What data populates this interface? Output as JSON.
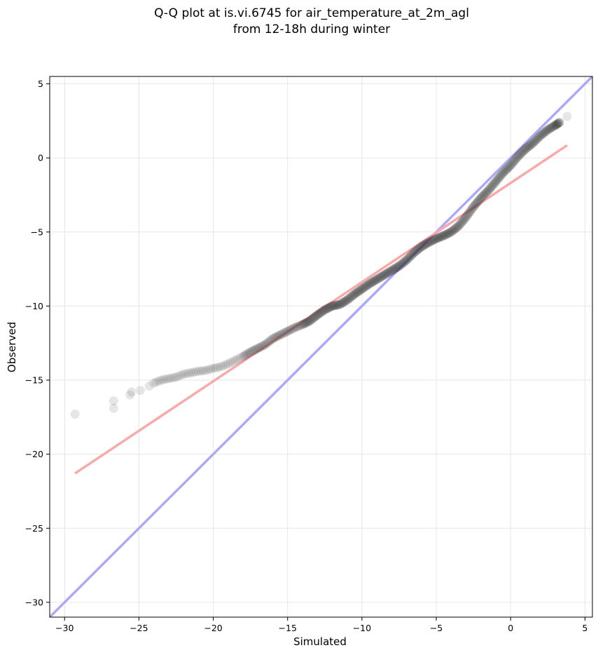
{
  "chart_data": {
    "type": "scatter",
    "title": "Q-Q plot at is.vi.6745 for air_temperature_at_2m_agl",
    "subtitle": "from 12-18h during winter",
    "xlabel": "Simulated",
    "ylabel": "Observed",
    "xlim": [
      -31,
      5.5
    ],
    "ylim": [
      -31,
      5.5
    ],
    "xticks": [
      -30,
      -25,
      -20,
      -15,
      -10,
      -5,
      0,
      5
    ],
    "yticks": [
      -30,
      -25,
      -20,
      -15,
      -10,
      -5,
      0,
      5
    ],
    "xtick_labels": [
      "−30",
      "−25",
      "−20",
      "−15",
      "−10",
      "−5",
      "0",
      "5"
    ],
    "ytick_labels": [
      "−30",
      "−25",
      "−20",
      "−15",
      "−10",
      "−5",
      "0",
      "5"
    ],
    "grid": true,
    "colors": {
      "points": "#333333",
      "identity_line": "#aaaaf8",
      "fit_line": "#f8aaaa"
    },
    "qq_curve": [
      [
        -29.3,
        -17.3
      ],
      [
        -26.7,
        -16.9
      ],
      [
        -26.7,
        -16.4
      ],
      [
        -25.6,
        -16.0
      ],
      [
        -25.5,
        -15.8
      ],
      [
        -24.9,
        -15.7
      ],
      [
        -24.3,
        -15.4
      ],
      [
        -24.0,
        -15.2
      ],
      [
        -23.5,
        -15.0
      ],
      [
        -23.0,
        -14.9
      ],
      [
        -22.5,
        -14.8
      ],
      [
        -22.0,
        -14.6
      ],
      [
        -21.5,
        -14.5
      ],
      [
        -21.0,
        -14.4
      ],
      [
        -20.5,
        -14.35
      ],
      [
        -20.0,
        -14.2
      ],
      [
        -19.5,
        -14.1
      ],
      [
        -19.0,
        -13.9
      ],
      [
        -18.5,
        -13.65
      ],
      [
        -18.0,
        -13.4
      ],
      [
        -17.5,
        -13.1
      ],
      [
        -17.0,
        -12.85
      ],
      [
        -16.5,
        -12.6
      ],
      [
        -16.0,
        -12.2
      ],
      [
        -15.5,
        -11.95
      ],
      [
        -15.0,
        -11.7
      ],
      [
        -14.5,
        -11.45
      ],
      [
        -14.0,
        -11.25
      ],
      [
        -13.5,
        -11.0
      ],
      [
        -13.0,
        -10.6
      ],
      [
        -12.5,
        -10.25
      ],
      [
        -12.0,
        -10.0
      ],
      [
        -11.5,
        -9.9
      ],
      [
        -11.0,
        -9.6
      ],
      [
        -10.5,
        -9.2
      ],
      [
        -10.0,
        -8.85
      ],
      [
        -9.5,
        -8.5
      ],
      [
        -9.0,
        -8.2
      ],
      [
        -8.5,
        -7.9
      ],
      [
        -8.0,
        -7.6
      ],
      [
        -7.5,
        -7.3
      ],
      [
        -7.0,
        -6.9
      ],
      [
        -6.5,
        -6.4
      ],
      [
        -6.0,
        -6.0
      ],
      [
        -5.5,
        -5.7
      ],
      [
        -5.0,
        -5.45
      ],
      [
        -4.5,
        -5.25
      ],
      [
        -4.0,
        -5.0
      ],
      [
        -3.5,
        -4.6
      ],
      [
        -3.0,
        -4.0
      ],
      [
        -2.5,
        -3.3
      ],
      [
        -2.0,
        -2.7
      ],
      [
        -1.5,
        -2.2
      ],
      [
        -1.0,
        -1.6
      ],
      [
        -0.5,
        -1.0
      ],
      [
        0.0,
        -0.5
      ],
      [
        0.5,
        0.1
      ],
      [
        1.0,
        0.6
      ],
      [
        1.5,
        1.0
      ],
      [
        2.0,
        1.5
      ],
      [
        2.5,
        1.9
      ],
      [
        3.0,
        2.2
      ],
      [
        3.3,
        2.4
      ],
      [
        3.8,
        2.8
      ]
    ],
    "identity_line": {
      "x": [
        -31,
        5.5
      ],
      "y": [
        -31,
        5.5
      ]
    },
    "fit_line": {
      "x": [
        -29.3,
        3.8
      ],
      "y": [
        -21.3,
        0.85
      ]
    }
  }
}
